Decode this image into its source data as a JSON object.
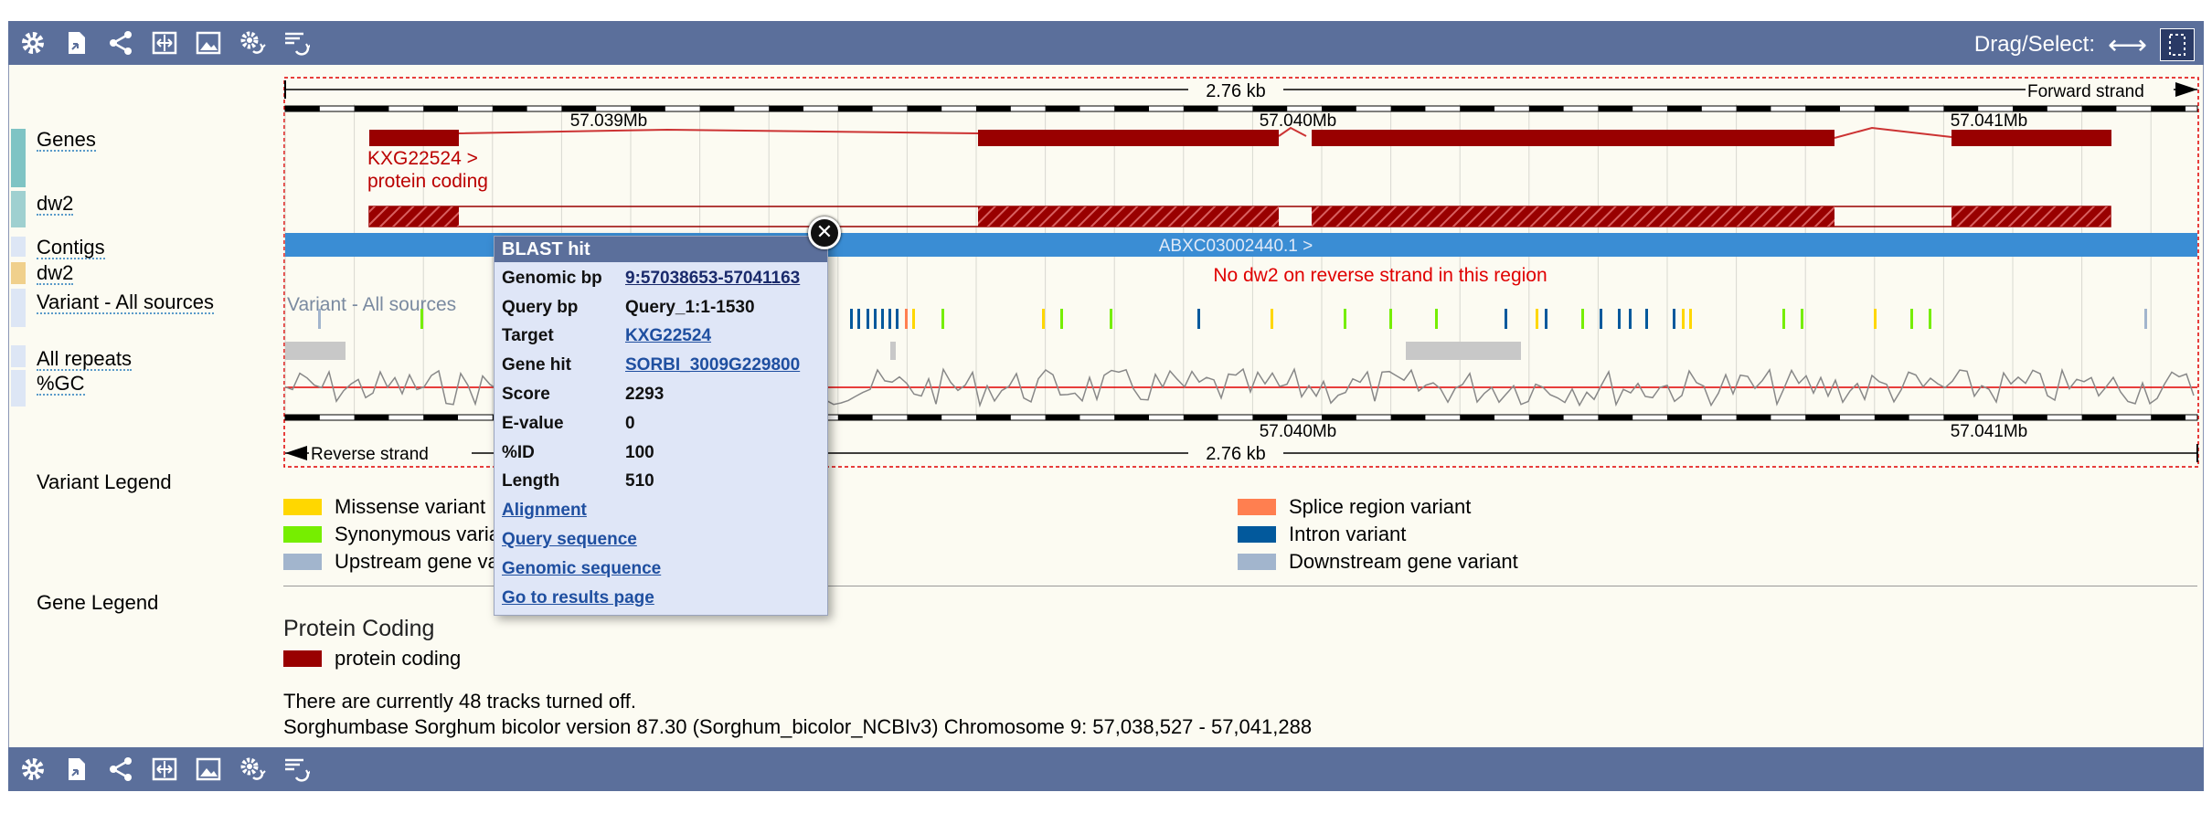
{
  "toolbar": {
    "icons": [
      "gear-icon",
      "export-icon",
      "share-icon",
      "resize-icon",
      "image-icon",
      "settings-sync-icon",
      "refresh-list-icon"
    ],
    "drag_select_label": "Drag/Select:"
  },
  "colors": {
    "toolbar": "#5b6f9b",
    "gene": "#990000",
    "contig": "#3a8dd4",
    "accent_red": "#e00000"
  },
  "tracks": {
    "genes": "Genes",
    "dw2": "dw2",
    "contigs": "Contigs",
    "dw2_rev": "dw2",
    "variant": "Variant - All sources",
    "repeats": "All repeats",
    "gc": "%GC"
  },
  "ruler": {
    "top_span": "2.76 kb",
    "forward_strand": "Forward strand",
    "reverse_strand": "Reverse strand",
    "bottom_span": "2.76 kb",
    "top_ticks": [
      "57.039Mb",
      "57.040Mb",
      "57.041Mb"
    ],
    "bottom_ticks": [
      "57.040Mb",
      "57.041Mb"
    ]
  },
  "gene_feature": {
    "name": "KXG22524 >",
    "biotype": "protein coding"
  },
  "contig_label": "ABXC03002440.1 >",
  "no_reverse_msg": "No dw2 on reverse strand in this region",
  "variant_track_label": "Variant - All sources",
  "popup": {
    "title": "BLAST hit",
    "rows": [
      {
        "key": "Genomic bp",
        "value": "9:57038653-57041163",
        "link": true
      },
      {
        "key": "Query bp",
        "value": "Query_1:1-1530",
        "link": false
      },
      {
        "key": "Target",
        "value": "KXG22524",
        "link": true
      },
      {
        "key": "Gene hit",
        "value": "SORBI_3009G229800",
        "link": true
      },
      {
        "key": "Score",
        "value": "2293",
        "link": false
      },
      {
        "key": "E-value",
        "value": "0",
        "link": false
      },
      {
        "key": "%ID",
        "value": "100",
        "link": false
      },
      {
        "key": "Length",
        "value": "510",
        "link": false
      }
    ],
    "links": [
      "Alignment",
      "Query sequence",
      "Genomic sequence",
      "Go to results page"
    ]
  },
  "variant_legend": {
    "heading": "Variant Legend",
    "items": [
      {
        "label": "Missense variant",
        "color": "#ffd700"
      },
      {
        "label": "Synonymous variant",
        "color": "#76ee00"
      },
      {
        "label": "Upstream gene variant",
        "color": "#a2b5cd"
      },
      {
        "label": "Splice region variant",
        "color": "#ff7f50"
      },
      {
        "label": "Intron variant",
        "color": "#02599c"
      },
      {
        "label": "Downstream gene variant",
        "color": "#a2b5cd"
      }
    ]
  },
  "gene_legend": {
    "heading": "Gene Legend",
    "subheading": "Protein Coding",
    "item": "protein coding",
    "color": "#990000"
  },
  "footer": {
    "tracks_off": "There are currently 48 tracks turned off.",
    "assembly": "Sorghumbase Sorghum bicolor version 87.30 (Sorghum_bicolor_NCBIv3) Chromosome 9: 57,038,527 - 57,041,288"
  }
}
